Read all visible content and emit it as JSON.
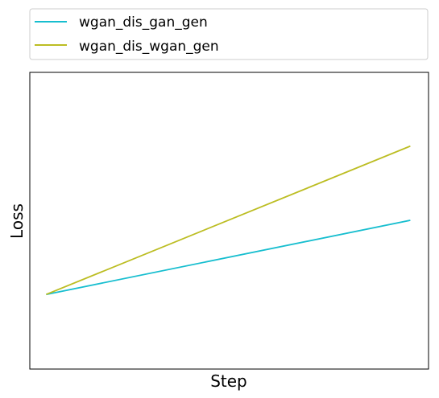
{
  "chart_data": {
    "type": "line",
    "xlabel": "Step",
    "ylabel": "Loss",
    "x": [
      0,
      1
    ],
    "xlim": [
      -0.045,
      1.05
    ],
    "ylim": [
      0.3,
      1.0
    ],
    "grid": false,
    "ticks_visible": false,
    "legend_position": "top (above plot)",
    "series": [
      {
        "name": "wgan_dis_gan_gen",
        "values": [
          0.476,
          0.651
        ],
        "color": "#17becf"
      },
      {
        "name": "wgan_dis_wgan_gen",
        "values": [
          0.476,
          0.826
        ],
        "color": "#bcbd22"
      }
    ]
  }
}
